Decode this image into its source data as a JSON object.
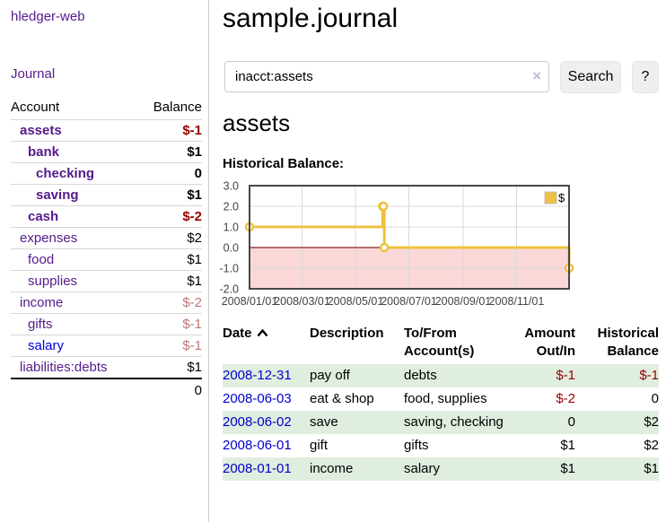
{
  "app": {
    "title": "hledger-web"
  },
  "sidebar": {
    "nav": [
      {
        "label": "Journal"
      }
    ],
    "table_headers": {
      "account": "Account",
      "balance": "Balance"
    },
    "accounts": [
      {
        "name": "assets",
        "indent": 1,
        "bold": true,
        "balance": "$-1",
        "balance_tone": "negative",
        "link_tone": "purple"
      },
      {
        "name": "bank",
        "indent": 2,
        "bold": true,
        "balance": "$1",
        "balance_tone": "normal",
        "link_tone": "purple"
      },
      {
        "name": "checking",
        "indent": 3,
        "bold": true,
        "balance": "0",
        "balance_tone": "normal",
        "link_tone": "purple"
      },
      {
        "name": "saving",
        "indent": 3,
        "bold": true,
        "balance": "$1",
        "balance_tone": "normal",
        "link_tone": "purple"
      },
      {
        "name": "cash",
        "indent": 2,
        "bold": true,
        "balance": "$-2",
        "balance_tone": "negative",
        "link_tone": "purple"
      },
      {
        "name": "expenses",
        "indent": 1,
        "bold": false,
        "balance": "$2",
        "balance_tone": "normal",
        "link_tone": "purple"
      },
      {
        "name": "food",
        "indent": 2,
        "bold": false,
        "balance": "$1",
        "balance_tone": "normal",
        "link_tone": "purple"
      },
      {
        "name": "supplies",
        "indent": 2,
        "bold": false,
        "balance": "$1",
        "balance_tone": "normal",
        "link_tone": "purple"
      },
      {
        "name": "income",
        "indent": 1,
        "bold": false,
        "balance": "$-2",
        "balance_tone": "negative-dim",
        "link_tone": "purple"
      },
      {
        "name": "gifts",
        "indent": 2,
        "bold": false,
        "balance": "$-1",
        "balance_tone": "negative-dim",
        "link_tone": "purple"
      },
      {
        "name": "salary",
        "indent": 2,
        "bold": false,
        "balance": "$-1",
        "balance_tone": "negative-dim",
        "link_tone": "blue"
      },
      {
        "name": "liabilities:debts",
        "indent": 1,
        "bold": false,
        "balance": "$1",
        "balance_tone": "normal",
        "link_tone": "purple"
      }
    ],
    "total": "0"
  },
  "main": {
    "title": "sample.journal",
    "search": {
      "value": "inacct:assets",
      "clear_icon": "×",
      "button_label": "Search",
      "help_label": "?"
    },
    "account_heading": "assets",
    "chart_label": "Historical Balance:"
  },
  "chart_data": {
    "type": "line",
    "title": "Historical Balance of assets",
    "step": true,
    "series": [
      {
        "name": "$",
        "color": "#edc240",
        "points": [
          [
            "2008-01-01",
            1
          ],
          [
            "2008-06-01",
            2
          ],
          [
            "2008-06-02",
            2
          ],
          [
            "2008-06-03",
            0
          ],
          [
            "2008-12-31",
            -1
          ]
        ]
      }
    ],
    "xlim": [
      "2008-01-01",
      "2008-12-31"
    ],
    "ylim": [
      -2,
      3
    ],
    "y_ticks": [
      "3.0",
      "2.0",
      "1.0",
      "0.0",
      "-1.0",
      "-2.0"
    ],
    "x_ticks": [
      {
        "label": "2008/01/01",
        "date": "2008-01-01"
      },
      {
        "label": "2008/03/01",
        "date": "2008-03-01"
      },
      {
        "label": "2008/05/01",
        "date": "2008-05-01"
      },
      {
        "label": "2008/07/01",
        "date": "2008-07-01"
      },
      {
        "label": "2008/09/01",
        "date": "2008-09-01"
      },
      {
        "label": "2008/11/01",
        "date": "2008-11-01"
      }
    ],
    "legend": {
      "label": "$",
      "position": "top-right"
    },
    "grid": true,
    "negative_region_color": "#fbd8d8",
    "zero_line_color": "#8e1f1f"
  },
  "register": {
    "columns": [
      "Date",
      "Description",
      "To/From Account(s)",
      "Amount Out/In",
      "Historical Balance"
    ],
    "sort": {
      "column": "Date",
      "direction": "ascending"
    },
    "rows": [
      {
        "date": "2008-12-31",
        "description": "pay off",
        "accounts": "debts",
        "amount": "$-1",
        "amount_negative": true,
        "balance": "$-1",
        "balance_negative": true
      },
      {
        "date": "2008-06-03",
        "description": "eat & shop",
        "accounts": "food, supplies",
        "amount": "$-2",
        "amount_negative": true,
        "balance": "0",
        "balance_negative": false
      },
      {
        "date": "2008-06-02",
        "description": "save",
        "accounts": "saving, checking",
        "amount": "0",
        "amount_negative": false,
        "balance": "$2",
        "balance_negative": false
      },
      {
        "date": "2008-06-01",
        "description": "gift",
        "accounts": "gifts",
        "amount": "$1",
        "amount_negative": false,
        "balance": "$2",
        "balance_negative": false
      },
      {
        "date": "2008-01-01",
        "description": "income",
        "accounts": "salary",
        "amount": "$1",
        "amount_negative": false,
        "balance": "$1",
        "balance_negative": false
      }
    ]
  }
}
